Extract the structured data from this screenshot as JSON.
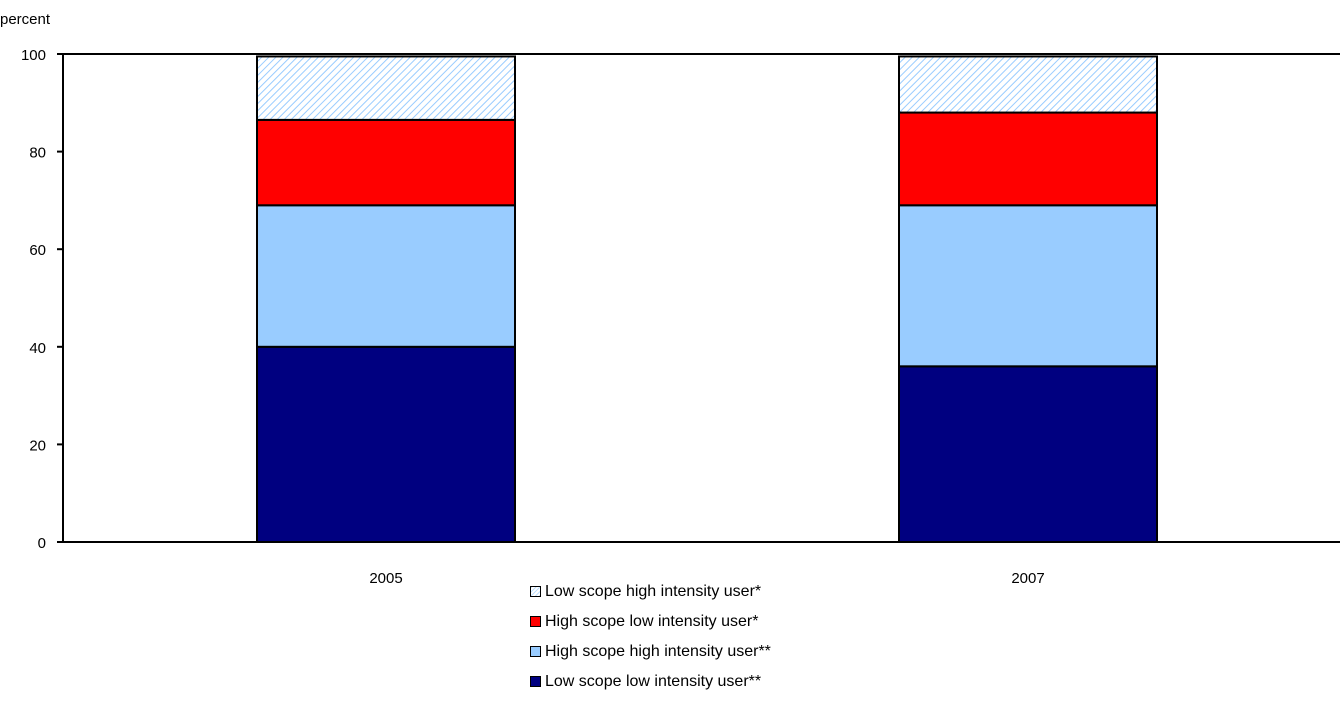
{
  "chart_data": {
    "type": "bar",
    "stacked": true,
    "ylabel": "percent",
    "ylim": [
      0,
      100
    ],
    "yticks": [
      "0",
      "20",
      "40",
      "60",
      "80",
      "100"
    ],
    "categories": [
      "2005",
      "2007"
    ],
    "series": [
      {
        "name": "Low scope low intensity user**",
        "values": [
          40,
          36
        ],
        "color": "#000080"
      },
      {
        "name": "High scope high intensity user**",
        "values": [
          29,
          33
        ],
        "color": "#99ccff"
      },
      {
        "name": "High scope low intensity user*",
        "values": [
          17.5,
          19
        ],
        "color": "#ff0000"
      },
      {
        "name": "Low scope high intensity user*",
        "values": [
          13,
          11.5
        ],
        "color": "#99ccff",
        "pattern": "hatch"
      }
    ],
    "legend": [
      {
        "label": "Low scope high intensity user*",
        "color": "#99ccff",
        "pattern": "hatch"
      },
      {
        "label": "High scope low intensity user*",
        "color": "#ff0000"
      },
      {
        "label": "High scope high intensity user**",
        "color": "#99ccff"
      },
      {
        "label": "Low scope low intensity user**",
        "color": "#000080"
      }
    ]
  }
}
